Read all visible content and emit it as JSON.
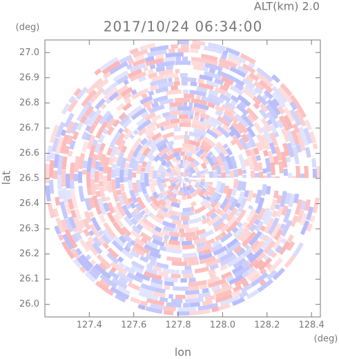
{
  "chart_data": {
    "type": "radar-ppi",
    "title": "2017/10/24 06:34:00",
    "subtitle": "ALT(km) 2.0",
    "x_label": "lon",
    "y_label": "lat",
    "x_unit": "(deg)",
    "y_unit": "(deg)",
    "xlim": [
      127.2,
      128.44
    ],
    "ylim": [
      25.95,
      27.05
    ],
    "xticks": [
      127.4,
      127.6,
      127.8,
      {
        "value": 128.0,
        "label": "128.0"
      },
      128.2,
      128.4
    ],
    "yticks": [
      {
        "value": 26.0,
        "label": "26.0"
      },
      26.1,
      26.2,
      26.3,
      26.4,
      26.5,
      26.6,
      26.7,
      26.8,
      26.9,
      {
        "value": 27.0,
        "label": "27.0"
      }
    ]
  }
}
